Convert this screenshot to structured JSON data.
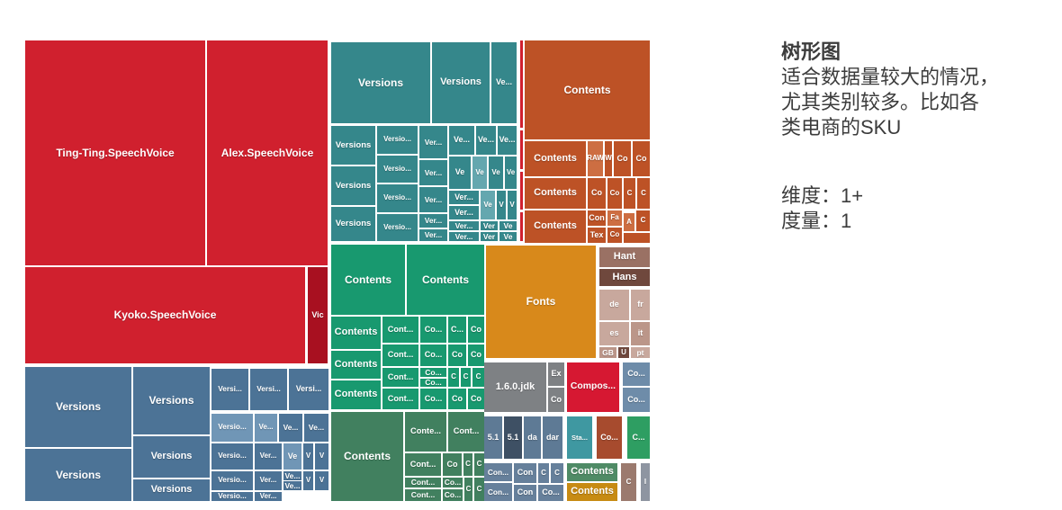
{
  "panel": {
    "title": "树形图",
    "description_lines": [
      "适合数据量较大的情况，",
      "尤其类别较多。比如各",
      "类电商的SKU"
    ],
    "dimension_label": "维度：1+",
    "measure_label": "度量：1"
  },
  "chart_data": {
    "type": "treemap",
    "description": "Treemap of file system items (SpeechVoice bundles, Versions, Contents, Fonts, locales); cell size encodes the single measure, color encodes category",
    "palette": {
      "red": "#d0202e",
      "redDark": "#a81020",
      "teal": "#35878b",
      "tealLight": "#64a7af",
      "rust": "#bd5226",
      "rustLight": "#cd6e42",
      "green": "#18996f",
      "greenDark": "#41805f",
      "blue": "#4c7396",
      "blueLight": "#7096b6",
      "fontsOrange": "#d8891b",
      "brown": "#9a7164",
      "brownDark": "#6f483d",
      "tan": "#c8a89d",
      "tanMid": "#bb9689",
      "gray": "#7e8184",
      "redBright": "#d61832",
      "steel": "#6e8ca9",
      "slate": "#5e7a95",
      "slateDark": "#3e5064",
      "tealSmall": "#3f98a1",
      "rustSmall": "#a74b2e",
      "greenSmall": "#2e9e62",
      "grayBlue": "#66809b",
      "greenBand": "#4f8b66",
      "ochre": "#c78b13",
      "mauve": "#9b7a6e",
      "graySteel": "#8e95a1"
    },
    "cells": [
      [
        "Ting-Ting.SpeechVoice",
        0,
        0,
        200,
        250,
        "red"
      ],
      [
        "Alex.SpeechVoice",
        202,
        0,
        134,
        250,
        "red"
      ],
      [
        "Kyoko.SpeechVoice",
        0,
        252,
        311,
        107,
        "red"
      ],
      [
        "Vic",
        314,
        252,
        22,
        107,
        "redDark"
      ],
      [
        "",
        550,
        0,
        3,
        97,
        "red"
      ],
      [
        "",
        550,
        100,
        3,
        43,
        "red"
      ],
      [
        "",
        550,
        146,
        3,
        42,
        "red"
      ],
      [
        "",
        550,
        191,
        3,
        32,
        "red"
      ],
      [
        "Versions",
        340,
        2,
        110,
        90,
        "teal"
      ],
      [
        "Versions",
        452,
        2,
        64,
        90,
        "teal"
      ],
      [
        "Ve...",
        518,
        2,
        28,
        90,
        "teal"
      ],
      [
        "Versions",
        340,
        95,
        49,
        43,
        "teal"
      ],
      [
        "Versions",
        340,
        140,
        49,
        43,
        "teal"
      ],
      [
        "Versions",
        340,
        185,
        49,
        38,
        "teal"
      ],
      [
        "Versio...",
        391,
        95,
        45,
        31,
        "teal"
      ],
      [
        "Versio...",
        391,
        128,
        45,
        30,
        "teal"
      ],
      [
        "Versio...",
        391,
        160,
        45,
        31,
        "teal"
      ],
      [
        "Versio...",
        391,
        193,
        45,
        30,
        "teal"
      ],
      [
        "Ver...",
        438,
        95,
        31,
        36,
        "teal"
      ],
      [
        "Ver...",
        438,
        133,
        31,
        28,
        "teal"
      ],
      [
        "Ver...",
        438,
        163,
        31,
        28,
        "teal"
      ],
      [
        "Ver...",
        438,
        193,
        31,
        15,
        "teal"
      ],
      [
        "Ver...",
        438,
        210,
        31,
        13,
        "teal"
      ],
      [
        "Ve...",
        471,
        95,
        28,
        32,
        "teal"
      ],
      [
        "Ve...",
        501,
        95,
        22,
        32,
        "teal"
      ],
      [
        "Ve...",
        525,
        95,
        21,
        32,
        "teal"
      ],
      [
        "Ve",
        471,
        129,
        24,
        36,
        "teal"
      ],
      [
        "Ve",
        497,
        129,
        16,
        36,
        "tealLight"
      ],
      [
        "Ve",
        515,
        129,
        16,
        36,
        "teal"
      ],
      [
        "Ve",
        533,
        129,
        13,
        36,
        "teal"
      ],
      [
        "Ver...",
        471,
        167,
        33,
        15,
        "teal"
      ],
      [
        "Ver...",
        471,
        184,
        33,
        15,
        "teal"
      ],
      [
        "Ve",
        506,
        167,
        16,
        32,
        "tealLight"
      ],
      [
        "V",
        524,
        167,
        10,
        32,
        "teal"
      ],
      [
        "V",
        536,
        167,
        10,
        32,
        "teal"
      ],
      [
        "Ver...",
        471,
        201,
        33,
        10,
        "teal"
      ],
      [
        "Ver...",
        471,
        213,
        33,
        10,
        "teal"
      ],
      [
        "Ver",
        506,
        201,
        19,
        10,
        "teal"
      ],
      [
        "Ve",
        527,
        201,
        19,
        10,
        "teal"
      ],
      [
        "Ver",
        506,
        213,
        19,
        10,
        "teal"
      ],
      [
        "Ve",
        527,
        213,
        19,
        10,
        "teal"
      ],
      [
        "Contents",
        555,
        0,
        139,
        110,
        "rust"
      ],
      [
        "Contents",
        555,
        112,
        68,
        39,
        "rust"
      ],
      [
        "RAW",
        625,
        112,
        17,
        39,
        "rustLight"
      ],
      [
        "W",
        644,
        112,
        8,
        39,
        "rust"
      ],
      [
        "Co",
        654,
        112,
        19,
        39,
        "rust"
      ],
      [
        "Co",
        675,
        112,
        19,
        39,
        "rust"
      ],
      [
        "Contents",
        555,
        153,
        68,
        34,
        "rust"
      ],
      [
        "Co",
        625,
        153,
        20,
        34,
        "rust"
      ],
      [
        "Co",
        647,
        153,
        16,
        34,
        "rust"
      ],
      [
        "C",
        665,
        153,
        13,
        34,
        "rust"
      ],
      [
        "C",
        680,
        153,
        14,
        34,
        "rust"
      ],
      [
        "Contents",
        555,
        189,
        68,
        36,
        "rust"
      ],
      [
        "Con",
        625,
        189,
        20,
        17,
        "rust"
      ],
      [
        "Tex",
        625,
        208,
        20,
        17,
        "rust"
      ],
      [
        "Fa",
        647,
        189,
        16,
        17,
        "rustLight"
      ],
      [
        "Co",
        647,
        208,
        16,
        17,
        "rust"
      ],
      [
        "A",
        665,
        192,
        12,
        20,
        "rustLight"
      ],
      [
        "C",
        679,
        189,
        15,
        23,
        "rust"
      ],
      [
        "",
        665,
        214,
        29,
        11,
        "rust"
      ],
      [
        "Contents",
        340,
        227,
        82,
        78,
        "green"
      ],
      [
        "Contents",
        424,
        227,
        86,
        78,
        "green"
      ],
      [
        "Contents",
        340,
        307,
        55,
        36,
        "green"
      ],
      [
        "Contents",
        340,
        345,
        55,
        31,
        "green"
      ],
      [
        "Contents",
        340,
        378,
        55,
        32,
        "green"
      ],
      [
        "Cont...",
        397,
        307,
        40,
        29,
        "green"
      ],
      [
        "Cont...",
        397,
        338,
        40,
        24,
        "green"
      ],
      [
        "Cont...",
        397,
        364,
        40,
        21,
        "green"
      ],
      [
        "Cont...",
        397,
        387,
        40,
        23,
        "green"
      ],
      [
        "Co...",
        439,
        307,
        29,
        29,
        "green"
      ],
      [
        "C...",
        470,
        307,
        20,
        29,
        "green"
      ],
      [
        "Co",
        492,
        307,
        18,
        29,
        "green"
      ],
      [
        "Co...",
        439,
        338,
        29,
        24,
        "green"
      ],
      [
        "Co",
        470,
        338,
        20,
        24,
        "green"
      ],
      [
        "Co",
        492,
        338,
        18,
        24,
        "green"
      ],
      [
        "Co...",
        439,
        364,
        29,
        10,
        "green"
      ],
      [
        "Co...",
        439,
        376,
        29,
        9,
        "green"
      ],
      [
        "C",
        470,
        364,
        12,
        21,
        "green"
      ],
      [
        "C",
        484,
        364,
        11,
        21,
        "green"
      ],
      [
        "C",
        497,
        364,
        13,
        21,
        "green"
      ],
      [
        "Co...",
        439,
        387,
        29,
        23,
        "green"
      ],
      [
        "Co",
        470,
        387,
        20,
        23,
        "green"
      ],
      [
        "Co",
        492,
        387,
        18,
        23,
        "green"
      ],
      [
        "Contents",
        340,
        413,
        80,
        99,
        "greenDark"
      ],
      [
        "Conte...",
        422,
        413,
        46,
        44,
        "greenDark"
      ],
      [
        "Cont...",
        470,
        413,
        40,
        44,
        "greenDark"
      ],
      [
        "Cont...",
        422,
        459,
        40,
        25,
        "greenDark"
      ],
      [
        "Co",
        464,
        459,
        21,
        25,
        "greenDark"
      ],
      [
        "C",
        487,
        459,
        10,
        25,
        "greenDark"
      ],
      [
        "C",
        499,
        459,
        11,
        25,
        "greenDark"
      ],
      [
        "Cont...",
        422,
        486,
        40,
        11,
        "greenDark"
      ],
      [
        "Co...",
        464,
        486,
        22,
        11,
        "greenDark"
      ],
      [
        "Cont...",
        422,
        499,
        40,
        13,
        "greenDark"
      ],
      [
        "Co...",
        464,
        499,
        22,
        13,
        "greenDark"
      ],
      [
        "C",
        488,
        486,
        9,
        26,
        "greenDark"
      ],
      [
        "C",
        499,
        486,
        11,
        26,
        "greenDark"
      ],
      [
        "Fonts",
        512,
        228,
        122,
        125,
        "fontsOrange"
      ],
      [
        "Hant",
        638,
        230,
        56,
        22,
        "brown"
      ],
      [
        "Hans",
        638,
        254,
        56,
        19,
        "brownDark"
      ],
      [
        "de",
        638,
        277,
        33,
        34,
        "tan"
      ],
      [
        "fr",
        673,
        277,
        21,
        34,
        "tan"
      ],
      [
        "es",
        638,
        313,
        33,
        26,
        "tan"
      ],
      [
        "it",
        673,
        313,
        21,
        26,
        "tanMid"
      ],
      [
        "GB",
        638,
        341,
        19,
        12,
        "tanMid"
      ],
      [
        "U",
        659,
        341,
        12,
        12,
        "brownDark"
      ],
      [
        "pt",
        673,
        341,
        21,
        12,
        "tan"
      ],
      [
        "1.6.0.jdk",
        510,
        358,
        69,
        55,
        "gray"
      ],
      [
        "Ex",
        581,
        358,
        18,
        26,
        "gray"
      ],
      [
        "Co",
        581,
        386,
        18,
        27,
        "gray"
      ],
      [
        "Compos...",
        602,
        358,
        58,
        55,
        "redBright"
      ],
      [
        "Co...",
        664,
        358,
        30,
        26,
        "steel"
      ],
      [
        "Co...",
        664,
        386,
        30,
        27,
        "steel"
      ],
      [
        "5.1",
        510,
        418,
        20,
        47,
        "slate"
      ],
      [
        "5.1",
        532,
        418,
        20,
        47,
        "slateDark"
      ],
      [
        "da",
        554,
        418,
        19,
        47,
        "slate"
      ],
      [
        "dar",
        575,
        418,
        22,
        47,
        "slate"
      ],
      [
        "Sta...",
        602,
        418,
        28,
        47,
        "tealSmall"
      ],
      [
        "Co...",
        635,
        418,
        28,
        47,
        "rustSmall"
      ],
      [
        "C...",
        669,
        418,
        25,
        47,
        "greenSmall"
      ],
      [
        "Con...",
        510,
        470,
        31,
        20,
        "grayBlue"
      ],
      [
        "Con",
        543,
        470,
        25,
        22,
        "grayBlue"
      ],
      [
        "C",
        570,
        470,
        12,
        22,
        "grayBlue"
      ],
      [
        "C",
        584,
        470,
        14,
        22,
        "grayBlue"
      ],
      [
        "Con...",
        510,
        492,
        31,
        20,
        "grayBlue"
      ],
      [
        "Con",
        543,
        494,
        25,
        18,
        "grayBlue"
      ],
      [
        "Co...",
        570,
        494,
        28,
        18,
        "grayBlue"
      ],
      [
        "Contents",
        602,
        470,
        56,
        20,
        "greenBand"
      ],
      [
        "Contents",
        602,
        492,
        56,
        20,
        "ochre"
      ],
      [
        "C",
        662,
        470,
        17,
        42,
        "mauve"
      ],
      [
        "I",
        684,
        470,
        10,
        42,
        "graySteel"
      ],
      [
        "Versions",
        0,
        363,
        118,
        89,
        "blue"
      ],
      [
        "Versions",
        0,
        454,
        118,
        58,
        "blue"
      ],
      [
        "Versions",
        120,
        363,
        85,
        75,
        "blue"
      ],
      [
        "Versions",
        120,
        440,
        85,
        46,
        "blue"
      ],
      [
        "Versions",
        120,
        488,
        85,
        24,
        "blue"
      ],
      [
        "Versi...",
        207,
        365,
        41,
        46,
        "blue"
      ],
      [
        "Versi...",
        250,
        365,
        41,
        46,
        "blue"
      ],
      [
        "Versi...",
        293,
        365,
        44,
        46,
        "blue"
      ],
      [
        "Versio...",
        207,
        415,
        46,
        31,
        "blueLight"
      ],
      [
        "Ve...",
        255,
        415,
        25,
        31,
        "blueLight"
      ],
      [
        "Ve...",
        282,
        415,
        26,
        31,
        "blue"
      ],
      [
        "Ve...",
        310,
        415,
        27,
        31,
        "blue"
      ],
      [
        "Versio...",
        207,
        448,
        46,
        29,
        "blue"
      ],
      [
        "Ver...",
        255,
        448,
        30,
        29,
        "blue"
      ],
      [
        "Ve",
        287,
        448,
        20,
        29,
        "blueLight"
      ],
      [
        "V",
        309,
        448,
        11,
        29,
        "blue"
      ],
      [
        "V",
        322,
        448,
        15,
        29,
        "blue"
      ],
      [
        "Versio...",
        207,
        479,
        46,
        21,
        "blue"
      ],
      [
        "Ver...",
        255,
        479,
        30,
        21,
        "blue"
      ],
      [
        "Ve...",
        287,
        479,
        20,
        10,
        "blue"
      ],
      [
        "Ve...",
        287,
        490,
        20,
        10,
        "blue"
      ],
      [
        "V",
        309,
        479,
        11,
        21,
        "blue"
      ],
      [
        "V",
        322,
        479,
        15,
        21,
        "blue"
      ],
      [
        "Versio...",
        207,
        502,
        46,
        10,
        "blue"
      ],
      [
        "Ver...",
        255,
        502,
        30,
        10,
        "blue"
      ]
    ]
  }
}
